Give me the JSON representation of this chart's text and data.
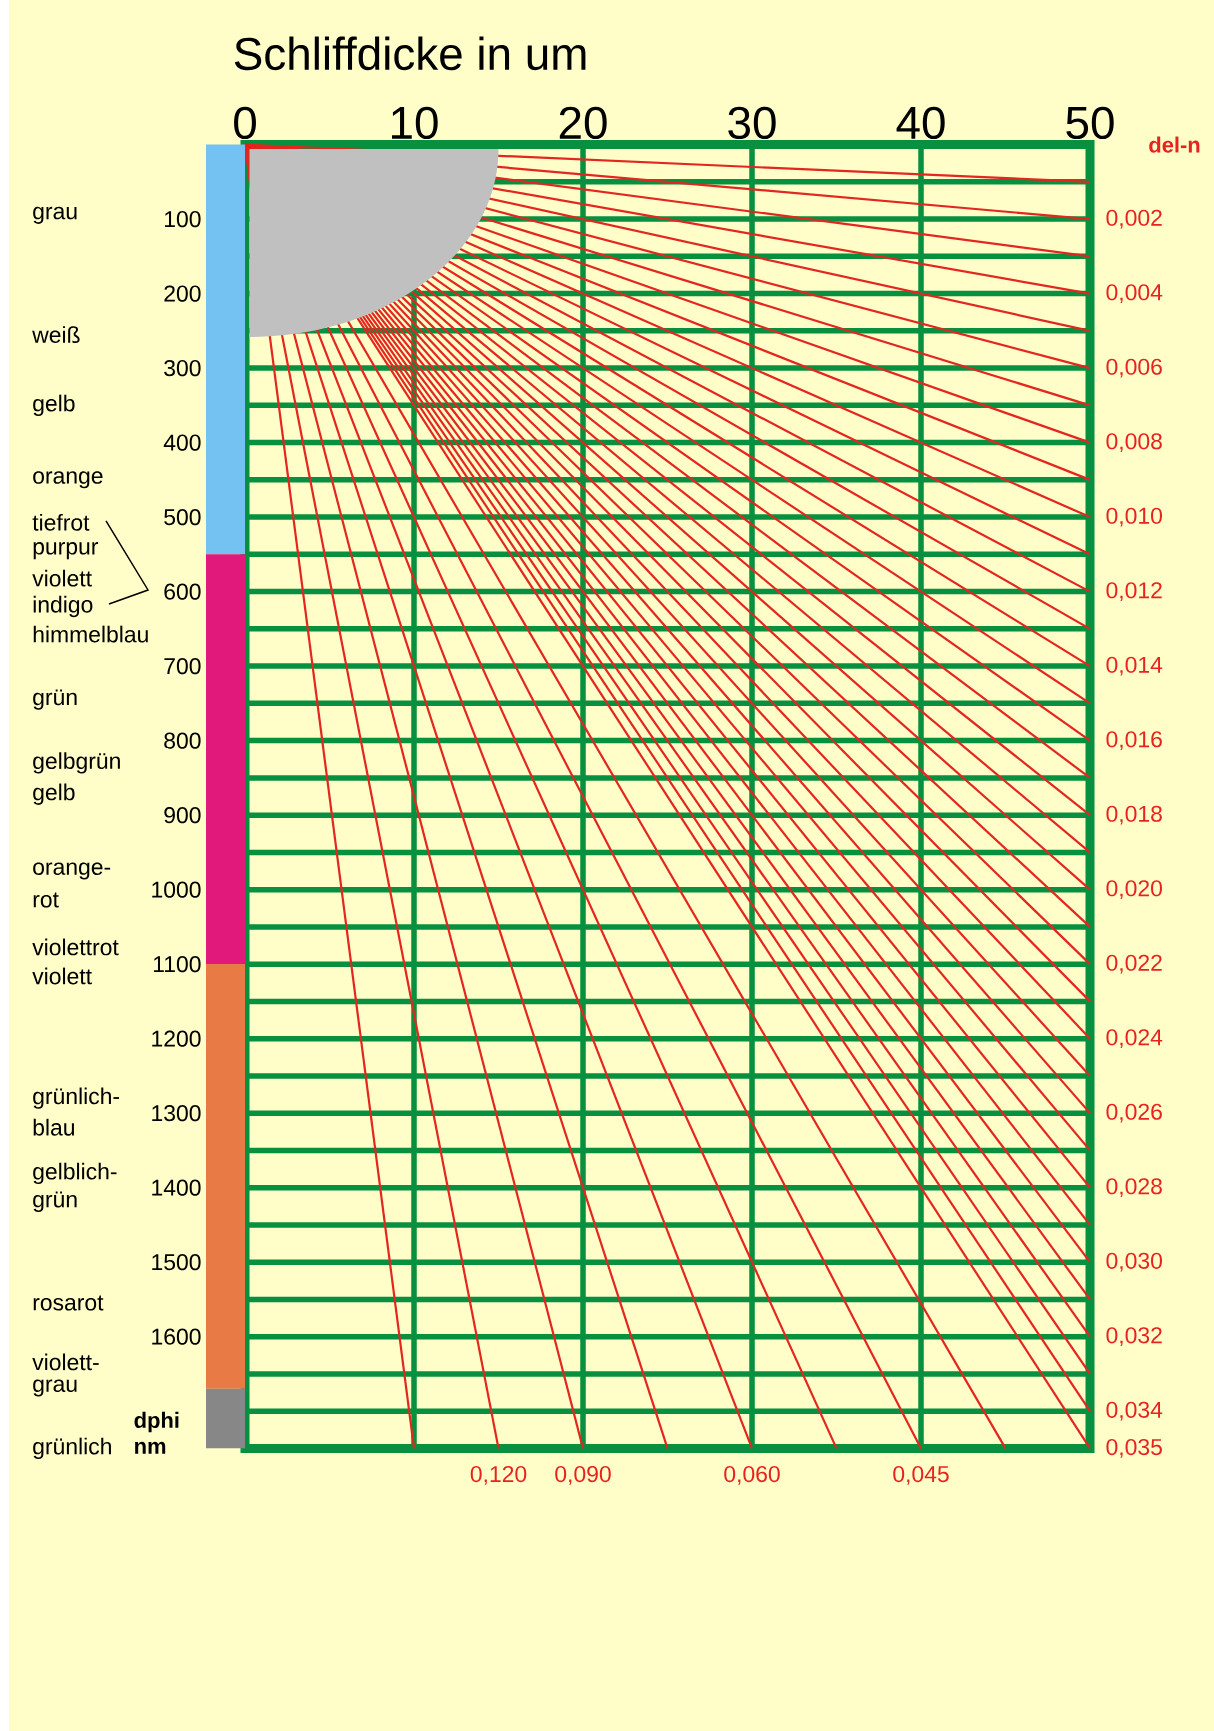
{
  "chart_data": {
    "type": "line",
    "xlabel": "Schliffdicke in um",
    "ylabel": "dphi nm",
    "y2label": "del-n",
    "xlim": [
      0,
      50
    ],
    "xticks": [
      0,
      10,
      20,
      30,
      40,
      50
    ],
    "ylim": [
      1750,
      0
    ],
    "yticks": [
      {
        "value": 50,
        "label": null
      },
      100,
      {
        "value": 150,
        "label": null
      },
      200,
      {
        "value": 250,
        "label": null
      },
      300,
      {
        "value": 350,
        "label": null
      },
      400,
      {
        "value": 450,
        "label": null
      },
      500,
      {
        "value": 550,
        "label": null
      },
      600,
      {
        "value": 650,
        "label": null
      },
      700,
      {
        "value": 750,
        "label": null
      },
      800,
      {
        "value": 850,
        "label": null
      },
      900,
      {
        "value": 950,
        "label": null
      },
      1000,
      {
        "value": 1050,
        "label": null
      },
      1100,
      {
        "value": 1150,
        "label": null
      },
      1200,
      {
        "value": 1250,
        "label": null
      },
      1300,
      {
        "value": 1350,
        "label": null
      },
      1400,
      {
        "value": 1450,
        "label": null
      },
      1500,
      {
        "value": 1550,
        "label": null
      },
      1600,
      {
        "value": 1650,
        "label": null
      },
      {
        "value": 1700,
        "label": null
      }
    ],
    "y2lim": [
      0.035,
      0
    ],
    "y2ticks": [
      {
        "value": 0.002,
        "label": "0,002"
      },
      {
        "value": 0.004,
        "label": "0,004"
      },
      {
        "value": 0.006,
        "label": "0,006"
      },
      {
        "value": 0.008,
        "label": "0,008"
      },
      {
        "value": 0.01,
        "label": "0,010"
      },
      {
        "value": 0.012,
        "label": "0,012"
      },
      {
        "value": 0.014,
        "label": "0,014"
      },
      {
        "value": 0.016,
        "label": "0,016"
      },
      {
        "value": 0.018,
        "label": "0,018"
      },
      {
        "value": 0.02,
        "label": "0,020"
      },
      {
        "value": 0.022,
        "label": "0,022"
      },
      {
        "value": 0.024,
        "label": "0,024"
      },
      {
        "value": 0.026,
        "label": "0,026"
      },
      {
        "value": 0.028,
        "label": "0,028"
      },
      {
        "value": 0.03,
        "label": "0,030"
      },
      {
        "value": 0.032,
        "label": "0,032"
      },
      {
        "value": 0.034,
        "label": "0,034"
      },
      {
        "value": 0.035,
        "label": "0,035"
      }
    ],
    "grid": true,
    "annotations": [
      "grau",
      "weiß",
      "gelb",
      "orange",
      "tiefrot",
      "purpur",
      "violett",
      "indigo",
      "himmelblau",
      "grün",
      "gelbgrün",
      "gelb",
      "orange-",
      "rot",
      "violettrot",
      "violett",
      "grünlich-",
      "blau",
      "gelblich-",
      "grün",
      "rosarot",
      "violett-",
      "grau",
      "grünlich",
      {
        "text": "0,120",
        "x": 15,
        "y": 1750
      },
      {
        "text": "0,090",
        "x": 20,
        "y": 1750
      },
      {
        "text": "0,060",
        "x": 30,
        "y": 1750
      },
      {
        "text": "0,045",
        "x": 40,
        "y": 1750
      }
    ],
    "series": [
      {
        "x": [
          0,
          50
        ],
        "values": [
          0,
          50
        ],
        "color": "#e3261f"
      },
      {
        "x": [
          0,
          50
        ],
        "values": [
          0,
          100
        ],
        "color": "#e3261f"
      },
      {
        "x": [
          0,
          50
        ],
        "values": [
          0,
          150
        ],
        "color": "#e3261f"
      },
      {
        "x": [
          0,
          50
        ],
        "values": [
          0,
          200
        ],
        "color": "#e3261f"
      },
      {
        "x": [
          0,
          50
        ],
        "values": [
          0,
          250
        ],
        "color": "#e3261f"
      },
      {
        "x": [
          0,
          50
        ],
        "values": [
          0,
          300
        ],
        "color": "#e3261f"
      },
      {
        "x": [
          0,
          50
        ],
        "values": [
          0,
          350
        ],
        "color": "#e3261f"
      },
      {
        "x": [
          0,
          50
        ],
        "values": [
          0,
          400
        ],
        "color": "#e3261f"
      },
      {
        "x": [
          0,
          50
        ],
        "values": [
          0,
          450
        ],
        "color": "#e3261f"
      },
      {
        "x": [
          0,
          50
        ],
        "values": [
          0,
          500
        ],
        "color": "#e3261f"
      },
      {
        "x": [
          0,
          50
        ],
        "values": [
          0,
          550
        ],
        "color": "#e3261f"
      },
      {
        "x": [
          0,
          50
        ],
        "values": [
          0,
          600
        ],
        "color": "#e3261f"
      },
      {
        "x": [
          0,
          50
        ],
        "values": [
          0,
          650
        ],
        "color": "#e3261f"
      },
      {
        "x": [
          0,
          50
        ],
        "values": [
          0,
          700
        ],
        "color": "#e3261f"
      },
      {
        "x": [
          0,
          50
        ],
        "values": [
          0,
          750
        ],
        "color": "#e3261f"
      },
      {
        "x": [
          0,
          50
        ],
        "values": [
          0,
          800
        ],
        "color": "#e3261f"
      },
      {
        "x": [
          0,
          50
        ],
        "values": [
          0,
          850
        ],
        "color": "#e3261f"
      },
      {
        "x": [
          0,
          50
        ],
        "values": [
          0,
          900
        ],
        "color": "#e3261f"
      },
      {
        "x": [
          0,
          50
        ],
        "values": [
          0,
          950
        ],
        "color": "#e3261f"
      },
      {
        "x": [
          0,
          50
        ],
        "values": [
          0,
          1000
        ],
        "color": "#e3261f"
      },
      {
        "x": [
          0,
          50
        ],
        "values": [
          0,
          1050
        ],
        "color": "#e3261f"
      },
      {
        "x": [
          0,
          50
        ],
        "values": [
          0,
          1100
        ],
        "color": "#e3261f"
      },
      {
        "x": [
          0,
          50
        ],
        "values": [
          0,
          1150
        ],
        "color": "#e3261f"
      },
      {
        "x": [
          0,
          50
        ],
        "values": [
          0,
          1200
        ],
        "color": "#e3261f"
      },
      {
        "x": [
          0,
          50
        ],
        "values": [
          0,
          1250
        ],
        "color": "#e3261f"
      },
      {
        "x": [
          0,
          50
        ],
        "values": [
          0,
          1300
        ],
        "color": "#e3261f"
      },
      {
        "x": [
          0,
          50
        ],
        "values": [
          0,
          1350
        ],
        "color": "#e3261f"
      },
      {
        "x": [
          0,
          50
        ],
        "values": [
          0,
          1400
        ],
        "color": "#e3261f"
      },
      {
        "x": [
          0,
          50
        ],
        "values": [
          0,
          1450
        ],
        "color": "#e3261f"
      },
      {
        "x": [
          0,
          50
        ],
        "values": [
          0,
          1500
        ],
        "color": "#e3261f"
      },
      {
        "x": [
          0,
          50
        ],
        "values": [
          0,
          1550
        ],
        "color": "#e3261f"
      },
      {
        "x": [
          0,
          50
        ],
        "values": [
          0,
          1600
        ],
        "color": "#e3261f"
      },
      {
        "x": [
          0,
          50
        ],
        "values": [
          0,
          1650
        ],
        "color": "#e3261f"
      },
      {
        "x": [
          0,
          50
        ],
        "values": [
          0,
          1700
        ],
        "color": "#e3261f"
      },
      {
        "x": [
          0,
          50
        ],
        "values": [
          0,
          1750
        ],
        "color": "#e3261f"
      },
      {
        "x": [
          0,
          45
        ],
        "values": [
          0,
          1750
        ],
        "color": "#e3261f"
      },
      {
        "x": [
          0,
          40
        ],
        "values": [
          0,
          1750
        ],
        "color": "#e3261f"
      },
      {
        "x": [
          0,
          35
        ],
        "values": [
          0,
          1750
        ],
        "color": "#e3261f"
      },
      {
        "x": [
          0,
          30
        ],
        "values": [
          0,
          1750
        ],
        "color": "#e3261f"
      },
      {
        "x": [
          0,
          25
        ],
        "values": [
          0,
          1750
        ],
        "color": "#e3261f"
      },
      {
        "x": [
          0,
          20
        ],
        "values": [
          0,
          1750
        ],
        "color": "#e3261f"
      },
      {
        "x": [
          0,
          15
        ],
        "values": [
          0,
          1750
        ],
        "color": "#e3261f"
      },
      {
        "x": [
          0,
          10
        ],
        "values": [
          0,
          1750
        ],
        "color": "#e3261f"
      }
    ]
  }
}
